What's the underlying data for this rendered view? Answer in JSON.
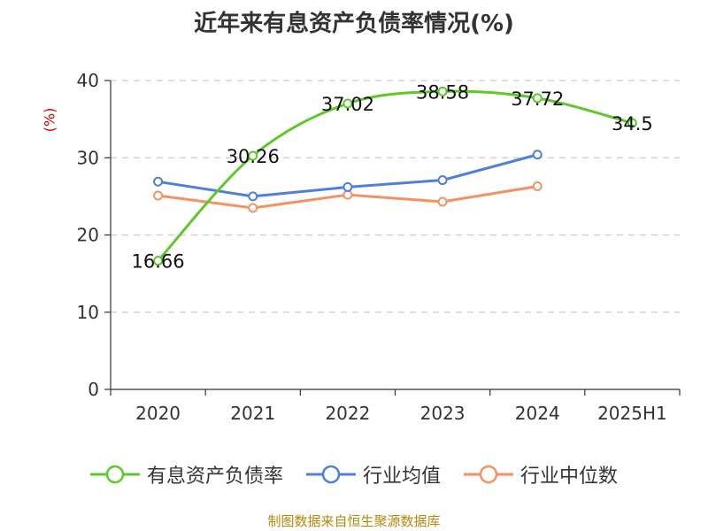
{
  "title": "近年来有息资产负债率情况(%)",
  "source": "制图数据来自恒生聚源数据库",
  "colors": {
    "series1": "#5ec82b",
    "series2": "#4f7fdc",
    "series3": "#f59263",
    "grid": "#cccccc",
    "axis": "#333333",
    "ylabel": "#cc0000",
    "source": "#b8860b"
  },
  "chart_data": {
    "type": "line",
    "title": "近年来有息资产负债率情况(%)",
    "xlabel": "",
    "ylabel": "(%)",
    "categories": [
      "2020",
      "2021",
      "2022",
      "2023",
      "2024",
      "2025H1"
    ],
    "ylim": [
      0,
      40
    ],
    "yticks": [
      "0",
      "10",
      "20",
      "30",
      "40"
    ],
    "grid": true,
    "legend_position": "bottom",
    "series": [
      {
        "name": "有息资产负债率",
        "values": [
          16.66,
          30.26,
          37.02,
          38.58,
          37.72,
          34.5
        ],
        "labels": [
          "16.66",
          "30.26",
          "37.02",
          "38.58",
          "37.72",
          "34.5"
        ]
      },
      {
        "name": "行业均值",
        "values": [
          26.9,
          25.0,
          26.2,
          27.1,
          30.4,
          null
        ]
      },
      {
        "name": "行业中位数",
        "values": [
          25.1,
          23.5,
          25.2,
          24.3,
          26.3,
          null
        ]
      }
    ]
  }
}
